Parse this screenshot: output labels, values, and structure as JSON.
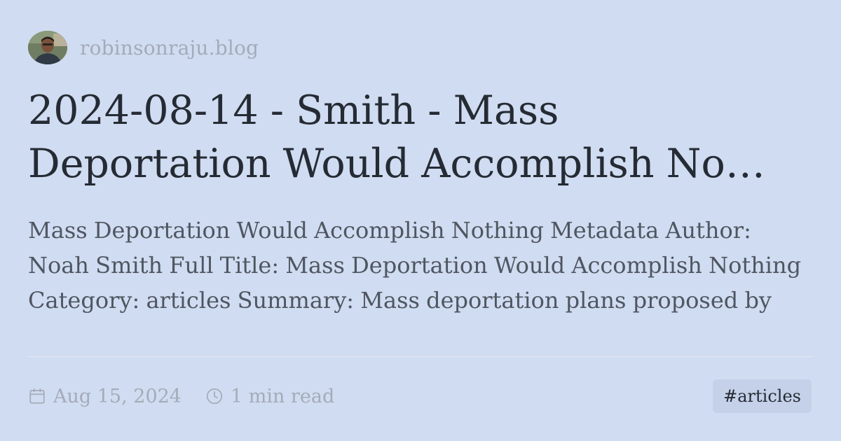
{
  "site": {
    "name": "robinsonraju.blog",
    "avatar_alt": "author avatar"
  },
  "post": {
    "title": "2024-08-14 - Smith - Mass Deportation Would Accomplish No…",
    "excerpt": "Mass Deportation Would Accomplish Nothing Metadata Author: Noah Smith Full Title: Mass Deportation Would Accomplish Nothing Category: articles Summary: Mass deportation plans proposed by Trump and his allies are unlikely to improve the"
  },
  "footer": {
    "date": "Aug 15, 2024",
    "read_time": "1 min read",
    "tag": "#articles"
  },
  "colors": {
    "background": "#d0dcf1",
    "title": "#252b34",
    "excerpt": "#4f5661",
    "muted": "#a3acb9",
    "tag_bg": "#c4d1e9"
  },
  "icons": {
    "date": "calendar-icon",
    "read_time": "clock-icon"
  }
}
